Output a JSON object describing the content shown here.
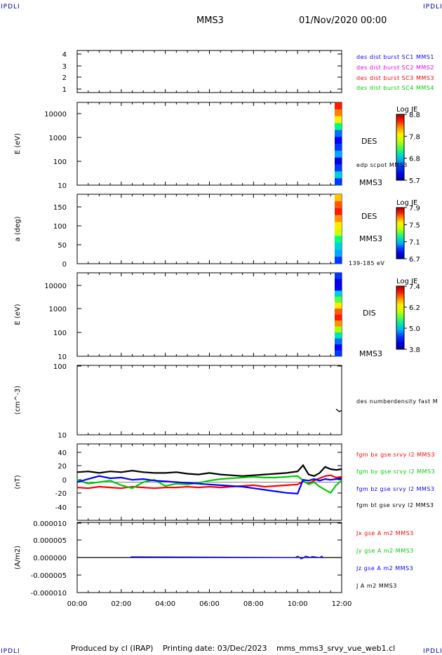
{
  "header": {
    "left_tag": "IPDLI",
    "right_tag": "IPDLI",
    "spacecraft": "MMS3",
    "datetime": "01/Nov/2020 00:00"
  },
  "footer": {
    "produced_by": "Produced by cl (IRAP)",
    "printing_date": "Printing date: 03/Dec/2023",
    "file_name": "mms_mms3_srvy_vue_web1.cl",
    "left_tag": "IPDLI",
    "right_tag": "IPDLI"
  },
  "colors": {
    "blue": "#0000ff",
    "magenta": "#e000e0",
    "red": "#ff0000",
    "green": "#00cc00",
    "black": "#000000"
  },
  "chart_data": [
    {
      "id": "panel1",
      "type": "line",
      "ylabel": "",
      "ylim": [
        0.6,
        4.4
      ],
      "yticks": [
        "1",
        "2",
        "3",
        "4"
      ],
      "legend": [
        {
          "label": "des dist burst SC1 MMS1",
          "color": "#0000ff"
        },
        {
          "label": "des dist burst SC2 MMS2",
          "color": "#e000e0"
        },
        {
          "label": "des dist burst SC3 MMS3",
          "color": "#ff0000"
        },
        {
          "label": "des dist burst SC4 MMS4",
          "color": "#00cc00"
        }
      ]
    },
    {
      "id": "panel2",
      "type": "heatmap",
      "ylabel": "E (eV)",
      "yscale": "log",
      "ylim": [
        10,
        30000
      ],
      "yticks": [
        "10",
        "100",
        "1000",
        "10000"
      ],
      "labels": [
        "DES",
        "edp scpot MMS3",
        "MMS3"
      ],
      "colorbar": {
        "title": "Log JE",
        "ticks": [
          "8.8",
          "7.8",
          "6.8",
          "5.7"
        ]
      }
    },
    {
      "id": "panel3",
      "type": "heatmap",
      "ylabel": "a (deg)",
      "ylim": [
        0,
        180
      ],
      "yticks": [
        "0",
        "50",
        "100",
        "150"
      ],
      "labels": [
        "DES",
        "MMS3",
        "139-185 eV"
      ],
      "colorbar": {
        "title": "Log JE",
        "ticks": [
          "7.9",
          "7.5",
          "7.1",
          "6.7"
        ]
      }
    },
    {
      "id": "panel4",
      "type": "heatmap",
      "ylabel": "E (eV)",
      "yscale": "log",
      "ylim": [
        10,
        30000
      ],
      "yticks": [
        "10",
        "100",
        "1000",
        "10000"
      ],
      "labels": [
        "DIS",
        "MMS3"
      ],
      "colorbar": {
        "title": "Log JE",
        "ticks": [
          "7.4",
          "6.2",
          "5.0",
          "3.8"
        ]
      }
    },
    {
      "id": "panel5",
      "type": "line",
      "ylabel": "(cm^-3)",
      "yscale": "log",
      "ylim": [
        10,
        100
      ],
      "yticks": [
        "10",
        "100"
      ],
      "legend": [
        {
          "label": "des numberdensity fast M",
          "color": "#000000"
        }
      ],
      "series": [
        {
          "name": "des numberdensity fast M",
          "color": "#000000",
          "x": [
            11.75,
            11.8,
            11.85,
            11.9,
            11.95,
            12.0
          ],
          "y": [
            23.5,
            22.8,
            22.0,
            21.5,
            22.2,
            22.0
          ]
        }
      ]
    },
    {
      "id": "panel6",
      "type": "line",
      "ylabel": "(nT)",
      "ylim": [
        -50,
        50
      ],
      "yticks": [
        "-40",
        "-20",
        "0",
        "20",
        "40"
      ],
      "legend": [
        {
          "label": "fgm bx gse srvy l2 MMS3",
          "color": "#ff0000"
        },
        {
          "label": "fgm by gse srvy l2 MMS3",
          "color": "#00cc00"
        },
        {
          "label": "fgm bz gse srvy l2 MMS3",
          "color": "#0000ff"
        },
        {
          "label": "fgm bt gse srvy l2 MMS3",
          "color": "#000000"
        }
      ],
      "series": [
        {
          "name": "fgm bt gse srvy l2 MMS3",
          "color": "#000000",
          "x": [
            0,
            0.5,
            1,
            1.5,
            2,
            2.5,
            3,
            3.5,
            4,
            4.5,
            5,
            5.5,
            6,
            6.5,
            7,
            7.5,
            8,
            8.5,
            9,
            9.5,
            10,
            10.25,
            10.5,
            10.75,
            11,
            11.25,
            11.5,
            11.75,
            12
          ],
          "y": [
            13,
            14,
            12,
            14,
            13,
            15,
            13,
            12,
            12,
            13,
            11,
            10,
            12,
            10,
            9,
            8,
            9,
            10,
            11,
            12,
            14,
            22,
            10,
            8,
            12,
            20,
            17,
            16,
            17
          ]
        },
        {
          "name": "fgm bx gse srvy l2 MMS3",
          "color": "#ff0000",
          "x": [
            0,
            0.5,
            1,
            1.5,
            2,
            2.5,
            3,
            3.5,
            4,
            4.5,
            5,
            5.5,
            6,
            6.5,
            7,
            7.5,
            8,
            8.5,
            9,
            9.5,
            10,
            10.25,
            10.5,
            10.75,
            11,
            11.25,
            11.5,
            11.75,
            12
          ],
          "y": [
            -7,
            -8,
            -6,
            -7,
            -8,
            -6,
            -7,
            -8,
            -7,
            -7,
            -6,
            -7,
            -6,
            -7,
            -6,
            -5,
            -4,
            -6,
            -5,
            -4,
            -3,
            1,
            -2,
            2,
            5,
            8,
            9,
            6,
            7
          ]
        },
        {
          "name": "fgm by gse srvy l2 MMS3",
          "color": "#00cc00",
          "x": [
            0,
            0.5,
            1,
            1.5,
            2,
            2.5,
            3,
            3.5,
            4,
            4.5,
            5,
            5.5,
            6,
            6.5,
            7,
            7.5,
            8,
            8.5,
            9,
            9.5,
            10,
            10.25,
            10.5,
            10.75,
            11,
            11.25,
            11.5,
            11.75,
            12
          ],
          "y": [
            3,
            -2,
            0,
            2,
            -4,
            -8,
            0,
            3,
            -5,
            -2,
            -3,
            -1,
            2,
            4,
            5,
            6,
            7,
            6,
            6,
            7,
            8,
            2,
            -3,
            0,
            -6,
            -10,
            -14,
            -4,
            2
          ]
        },
        {
          "name": "fgm bz gse srvy l2 MMS3",
          "color": "#0000ff",
          "x": [
            0,
            0.5,
            1,
            1.5,
            2,
            2.5,
            3,
            3.5,
            4,
            4.5,
            5,
            5.5,
            6,
            6.5,
            7,
            7.5,
            8,
            8.5,
            9,
            9.5,
            10,
            10.25,
            10.5,
            10.75,
            11,
            11.25,
            11.5,
            11.75,
            12
          ],
          "y": [
            0,
            4,
            8,
            5,
            6,
            3,
            4,
            2,
            1,
            0,
            -1,
            -2,
            -3,
            -4,
            -5,
            -6,
            -8,
            -10,
            -12,
            -14,
            -15,
            3,
            2,
            4,
            2,
            4,
            3,
            4,
            5
          ]
        }
      ]
    },
    {
      "id": "panel7",
      "type": "line",
      "ylabel": "(A/m2)",
      "ylim": [
        -1e-05,
        1e-05
      ],
      "yticks": [
        "-0.000010",
        "-0.000005",
        "0.000000",
        "0.000005",
        "0.000010"
      ],
      "legend": [
        {
          "label": "Jx gse A m2 MMS3",
          "color": "#ff0000"
        },
        {
          "label": "Jy gse A m2 MMS3",
          "color": "#00cc00"
        },
        {
          "label": "Jz gse A m2 MMS3",
          "color": "#0000ff"
        },
        {
          "label": "J A m2 MMS3",
          "color": "#000000"
        }
      ],
      "series": [
        {
          "name": "J A m2 MMS3",
          "color": "#000000",
          "x": [
            0,
            12
          ],
          "y": [
            0,
            0
          ]
        },
        {
          "name": "Jz gse A m2 MMS3",
          "color": "#0000ff",
          "x": [
            2.4,
            2.45,
            9.9,
            10.0,
            10.1,
            10.15,
            10.3,
            10.35,
            10.6,
            10.65,
            11.0,
            11.1,
            11.15
          ],
          "y": [
            0,
            2e-07,
            0,
            4e-07,
            0,
            -4e-07,
            0,
            4e-07,
            0,
            3e-07,
            0,
            4e-07,
            -2e-07
          ]
        }
      ]
    }
  ],
  "x_axis": {
    "range_hours": [
      0,
      12
    ],
    "tick_labels": [
      "00:00",
      "02:00",
      "04:00",
      "06:00",
      "08:00",
      "10:00",
      "12:00"
    ]
  }
}
